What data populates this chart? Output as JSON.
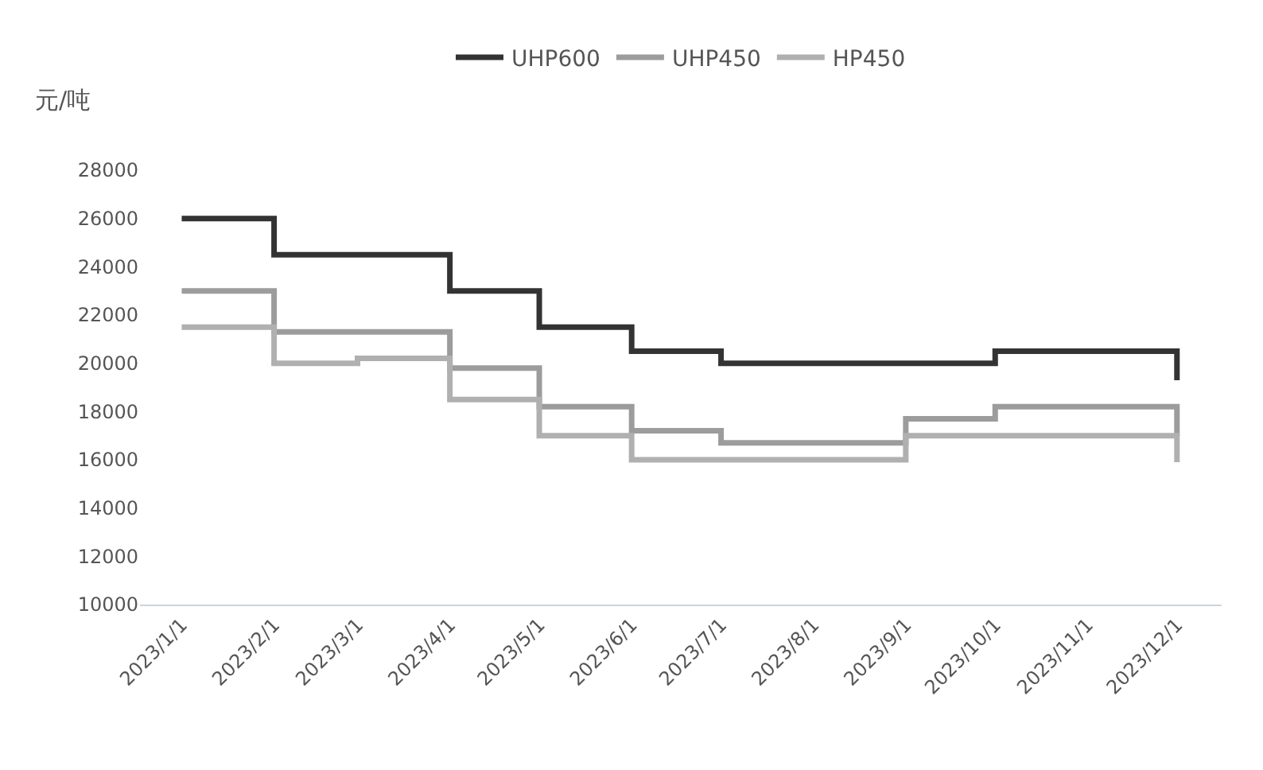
{
  "chart_data": {
    "type": "step",
    "ylabel": "元/吨",
    "series": [
      {
        "name": "UHP600",
        "color": "#333333",
        "x": [
          "2023-01-01",
          "2023-02-01",
          "2023-04-01",
          "2023-05-01",
          "2023-06-01",
          "2023-07-01",
          "2023-10-01",
          "2023-12-01"
        ],
        "values": [
          26000,
          24500,
          23000,
          21500,
          20500,
          20000,
          20500,
          19300
        ]
      },
      {
        "name": "UHP450",
        "color": "#9c9c9c",
        "x": [
          "2023-01-01",
          "2023-02-01",
          "2023-04-01",
          "2023-05-01",
          "2023-06-01",
          "2023-07-01",
          "2023-09-01",
          "2023-10-01",
          "2023-12-01"
        ],
        "values": [
          23000,
          21300,
          19800,
          18200,
          17200,
          16700,
          17700,
          18200,
          17000
        ]
      },
      {
        "name": "HP450",
        "color": "#b0b0b0",
        "x": [
          "2023-01-01",
          "2023-02-01",
          "2023-03-01",
          "2023-04-01",
          "2023-05-01",
          "2023-06-01",
          "2023-09-01",
          "2023-12-01"
        ],
        "values": [
          21500,
          20000,
          20200,
          18500,
          17000,
          16000,
          17000,
          15900
        ]
      }
    ],
    "xlim": [
      "2022-12-18",
      "2023-12-16"
    ],
    "xticks": [
      {
        "value": "2023-01-01",
        "label": "2023/1/1"
      },
      {
        "value": "2023-02-01",
        "label": "2023/2/1"
      },
      {
        "value": "2023-03-01",
        "label": "2023/3/1"
      },
      {
        "value": "2023-04-01",
        "label": "2023/4/1"
      },
      {
        "value": "2023-05-01",
        "label": "2023/5/1"
      },
      {
        "value": "2023-06-01",
        "label": "2023/6/1"
      },
      {
        "value": "2023-07-01",
        "label": "2023/7/1"
      },
      {
        "value": "2023-08-01",
        "label": "2023/8/1"
      },
      {
        "value": "2023-09-01",
        "label": "2023/9/1"
      },
      {
        "value": "2023-10-01",
        "label": "2023/10/1"
      },
      {
        "value": "2023-11-01",
        "label": "2023/11/1"
      },
      {
        "value": "2023-12-01",
        "label": "2023/12/1"
      }
    ],
    "ylim": [
      10000,
      28000
    ],
    "yticks": [
      10000,
      12000,
      14000,
      16000,
      18000,
      20000,
      22000,
      24000,
      26000,
      28000
    ],
    "grid": false,
    "legend": "top",
    "line_style": "solid",
    "marker": "none"
  }
}
